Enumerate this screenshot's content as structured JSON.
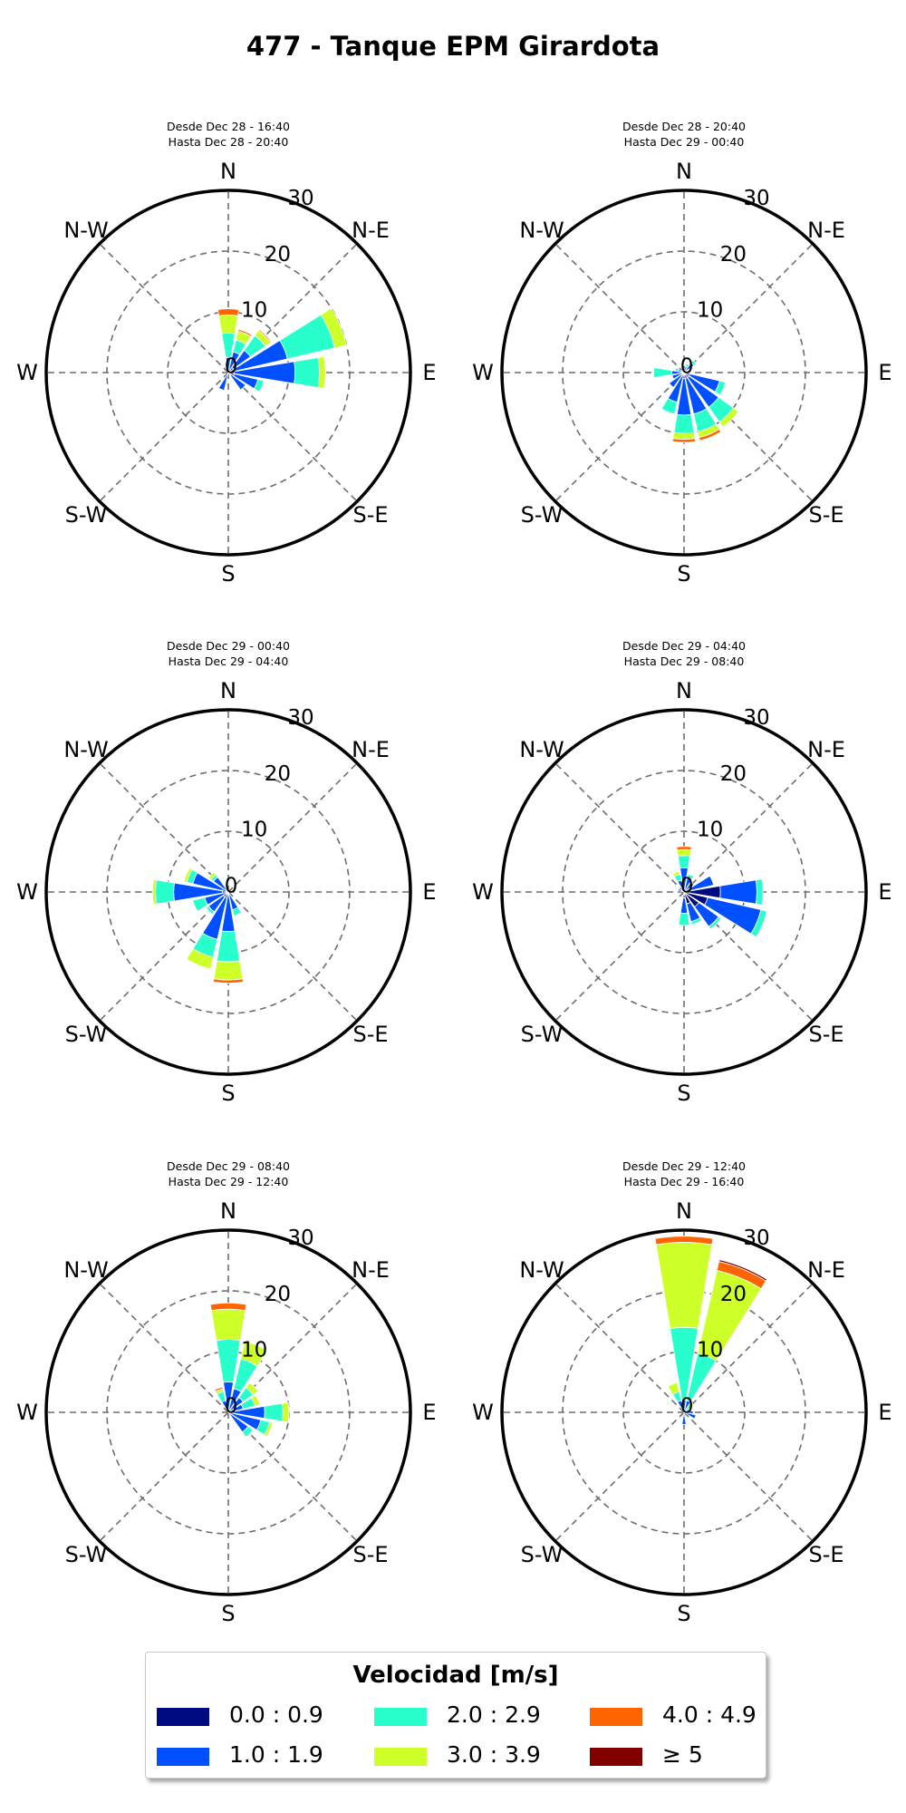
{
  "title": "477 - Tanque EPM Girardota",
  "chart_data": {
    "type": "windrose",
    "directions": [
      "N",
      "NNE",
      "NE",
      "ENE",
      "E",
      "ESE",
      "SE",
      "SSE",
      "S",
      "SSW",
      "SW",
      "WSW",
      "W",
      "WNW",
      "NW",
      "NNW"
    ],
    "compass_labels": [
      "N",
      "N-E",
      "E",
      "S-E",
      "S",
      "S-W",
      "W",
      "N-W"
    ],
    "radial_ticks": [
      "0",
      "10",
      "20",
      "30"
    ],
    "rmax": 30,
    "bins": [
      "0.0 : 0.9",
      "1.0 : 1.9",
      "2.0 : 2.9",
      "3.0 : 3.9",
      "4.0 : 4.9",
      "≥ 5"
    ],
    "bin_colors": [
      "#000a80",
      "#0050ff",
      "#29ffcd",
      "#cdff29",
      "#ff6400",
      "#800000"
    ],
    "panels": [
      {
        "subtitle_from": "Desde Dec 28 - 16:40",
        "subtitle_to": "Hasta Dec 28 - 20:40",
        "stacks": [
          [
            0,
            2.5,
            4,
            3,
            1,
            0
          ],
          [
            0.5,
            3,
            2,
            1.5,
            0.3,
            0
          ],
          [
            1,
            3.5,
            3,
            1,
            0.2,
            0
          ],
          [
            1,
            9,
            8,
            2,
            0,
            0
          ],
          [
            1,
            10,
            4,
            1,
            0,
            0
          ],
          [
            1,
            4,
            1,
            0,
            0,
            0
          ],
          [
            0.5,
            3,
            0,
            0,
            0,
            0
          ],
          [
            0,
            0,
            0,
            0,
            0,
            0
          ],
          [
            0,
            0,
            0,
            0,
            0,
            0
          ],
          [
            0,
            3,
            0,
            0,
            0,
            0
          ],
          [
            0,
            0,
            0,
            0,
            0,
            0
          ],
          [
            0,
            0,
            0,
            0,
            0,
            0
          ],
          [
            0,
            0,
            0,
            0,
            0,
            0
          ],
          [
            0,
            0,
            0,
            0,
            0,
            0
          ],
          [
            0,
            0,
            0,
            0,
            0,
            0
          ],
          [
            0,
            0,
            0,
            0,
            0,
            0
          ]
        ]
      },
      {
        "subtitle_from": "Desde Dec 29 - 00:40",
        "subtitle_to": "Hasta Dec 29 - 04:40",
        "stacks": [
          [
            0,
            0,
            0,
            0,
            0,
            0
          ],
          [
            0,
            0,
            0,
            0,
            0,
            0
          ],
          [
            0,
            0,
            0,
            0,
            0,
            0
          ],
          [
            0,
            0,
            0,
            0,
            0,
            0
          ],
          [
            0,
            0,
            0,
            0,
            0,
            0
          ],
          [
            0,
            0,
            0,
            0,
            0,
            0
          ],
          [
            0,
            0,
            0,
            0,
            0,
            0
          ],
          [
            0,
            3,
            1,
            0,
            0,
            0
          ],
          [
            0.5,
            6,
            5,
            3,
            0.5,
            0
          ],
          [
            1,
            7,
            3,
            2,
            0,
            0
          ],
          [
            1,
            3,
            0.5,
            0,
            0,
            0
          ],
          [
            0,
            4,
            2,
            0,
            0,
            0
          ],
          [
            1,
            8,
            3,
            0.5,
            0,
            0
          ],
          [
            1,
            5,
            1,
            0.5,
            0,
            0
          ],
          [
            0.5,
            2.5,
            0.5,
            0.5,
            0,
            0
          ],
          [
            0,
            0,
            0,
            0,
            0,
            0
          ]
        ]
      },
      {
        "subtitle_from": "Desde Dec 29 - 08:40",
        "subtitle_to": "Hasta Dec 29 - 12:40",
        "stacks": [
          [
            0,
            5,
            7,
            5,
            1,
            0
          ],
          [
            0,
            4,
            5,
            3,
            0,
            0
          ],
          [
            0,
            3,
            2,
            1,
            0,
            0
          ],
          [
            0,
            2.5,
            2,
            0.8,
            0,
            0
          ],
          [
            0,
            6,
            3,
            1,
            0,
            0
          ],
          [
            0,
            5.5,
            1.5,
            0.5,
            0,
            0
          ],
          [
            0,
            4,
            1,
            0,
            0,
            0
          ],
          [
            0,
            0,
            0,
            0,
            0,
            0
          ],
          [
            0,
            0,
            0,
            0,
            0,
            0
          ],
          [
            0,
            0,
            0,
            0,
            0,
            0
          ],
          [
            0,
            0,
            0,
            0,
            0,
            0
          ],
          [
            0,
            0,
            0,
            0,
            0,
            0
          ],
          [
            0,
            0,
            0,
            0,
            0,
            0
          ],
          [
            0,
            0,
            0,
            0,
            0,
            0
          ],
          [
            0,
            0,
            0,
            0,
            0,
            0
          ],
          [
            0,
            2,
            1.5,
            0.5,
            0.3,
            0
          ]
        ]
      },
      {
        "subtitle_from": "Desde Dec 28 - 20:40",
        "subtitle_to": "Hasta Dec 29 - 00:40",
        "stacks": [
          [
            0,
            0,
            0,
            0,
            0,
            0
          ],
          [
            0,
            1,
            0.5,
            0,
            0,
            0
          ],
          [
            0,
            2,
            0.5,
            0,
            0,
            0
          ],
          [
            0,
            0,
            0,
            0,
            0,
            0
          ],
          [
            0,
            1,
            0,
            0,
            0,
            0
          ],
          [
            1,
            5,
            1,
            0,
            0,
            0
          ],
          [
            1,
            6,
            3,
            1,
            0,
            0
          ],
          [
            1,
            6,
            3,
            1,
            0.5,
            0
          ],
          [
            1,
            6,
            3,
            1,
            0.5,
            0
          ],
          [
            0,
            5,
            2,
            0,
            0,
            0
          ],
          [
            0,
            3,
            0,
            0,
            0,
            0
          ],
          [
            0,
            2,
            0,
            0,
            0,
            0
          ],
          [
            0,
            2,
            3,
            0,
            0,
            0
          ],
          [
            0,
            1,
            0.5,
            0,
            0,
            0
          ],
          [
            0,
            0.5,
            0,
            0,
            0,
            0
          ],
          [
            0,
            0,
            0,
            0,
            0,
            0
          ]
        ]
      },
      {
        "subtitle_from": "Desde Dec 29 - 04:40",
        "subtitle_to": "Hasta Dec 29 - 08:40",
        "stacks": [
          [
            0,
            4,
            2,
            1,
            0.5,
            0
          ],
          [
            0,
            2.5,
            0.5,
            0,
            0,
            0
          ],
          [
            0,
            2,
            0,
            0,
            0,
            0
          ],
          [
            1,
            4,
            0,
            0,
            0,
            0
          ],
          [
            6,
            6,
            1,
            0,
            0,
            0
          ],
          [
            4,
            9,
            1,
            0,
            0,
            0
          ],
          [
            3,
            4,
            0.5,
            0,
            0,
            0
          ],
          [
            2,
            3,
            0.5,
            0,
            0,
            0
          ],
          [
            1,
            2.5,
            2,
            0,
            0,
            0
          ],
          [
            0,
            0,
            0,
            0,
            0,
            0
          ],
          [
            0,
            0,
            0,
            0,
            0,
            0
          ],
          [
            0,
            0,
            0,
            0,
            0,
            0
          ],
          [
            0,
            0,
            0,
            0,
            0,
            0
          ],
          [
            0,
            1,
            0,
            0,
            0,
            0
          ],
          [
            0,
            1,
            0,
            0,
            0,
            0
          ],
          [
            0,
            2,
            1,
            0.5,
            0,
            0
          ]
        ]
      },
      {
        "subtitle_from": "Desde Dec 29 - 12:40",
        "subtitle_to": "Hasta Dec 29 - 16:40",
        "stacks": [
          [
            0,
            2,
            12,
            14,
            1,
            0
          ],
          [
            0,
            2,
            8,
            14,
            1.5,
            0.3
          ],
          [
            0,
            0.5,
            1,
            0.5,
            0,
            0
          ],
          [
            0,
            1,
            0,
            0,
            0,
            0
          ],
          [
            0,
            1.5,
            0,
            0,
            0,
            0
          ],
          [
            0,
            2,
            0,
            0,
            0,
            0
          ],
          [
            0,
            0,
            0,
            0,
            0,
            0
          ],
          [
            0,
            0,
            0,
            0,
            0,
            0
          ],
          [
            0,
            2,
            0,
            0,
            0,
            0
          ],
          [
            0,
            0,
            0,
            0,
            0,
            0
          ],
          [
            0,
            0,
            0,
            0,
            0,
            0
          ],
          [
            0,
            0,
            0,
            0,
            0,
            0
          ],
          [
            0,
            0,
            0,
            0,
            0,
            0
          ],
          [
            0,
            0,
            0,
            0,
            0,
            0
          ],
          [
            0,
            0,
            0,
            0,
            0,
            0
          ],
          [
            0,
            2,
            1.5,
            1.5,
            0,
            0
          ]
        ]
      }
    ]
  },
  "legend": {
    "title": "Velocidad [m/s]",
    "items": [
      "0.0 : 0.9",
      "1.0 : 1.9",
      "2.0 : 2.9",
      "3.0 : 3.9",
      "4.0 : 4.9",
      "≥ 5"
    ]
  }
}
